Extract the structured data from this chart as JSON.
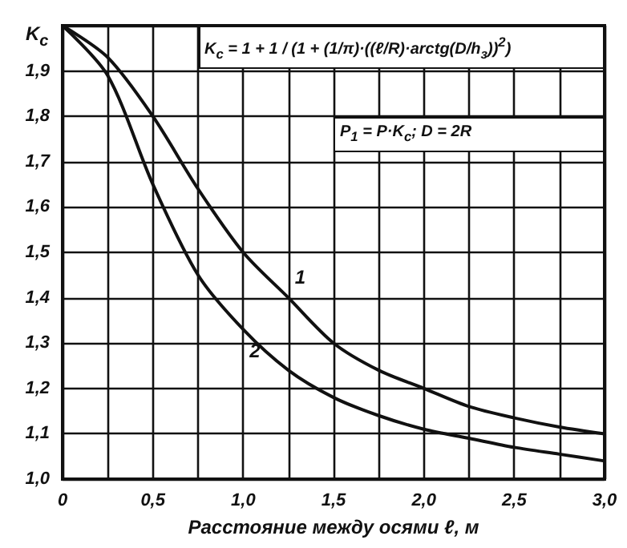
{
  "chart_data": {
    "type": "line",
    "xlabel": "Расстояние между осями ℓ, м",
    "ylabel": "K$_{c}$",
    "x": [
      0,
      0.25,
      0.5,
      0.75,
      1.0,
      1.25,
      1.5,
      1.75,
      2.0,
      2.25,
      2.5,
      2.75,
      3.0
    ],
    "series": [
      {
        "color": "#111111",
        "values": [
          2.0,
          1.93,
          1.8,
          1.64,
          1.5,
          1.4,
          1.3,
          1.24,
          1.2,
          1.16,
          1.135,
          1.115,
          1.1
        ]
      },
      {
        "color": "#111111",
        "values": [
          2.0,
          1.89,
          1.65,
          1.45,
          1.33,
          1.24,
          1.18,
          1.14,
          1.11,
          1.09,
          1.07,
          1.055,
          1.04
        ]
      }
    ],
    "xlim": [
      0,
      3.0
    ],
    "ylim": [
      1.0,
      2.0
    ],
    "xticks": [
      0,
      {
        "value": 0.25,
        "label": null
      },
      {
        "value": 0.5,
        "label": "0,5"
      },
      {
        "value": 0.75,
        "label": null
      },
      {
        "value": 1.0,
        "label": "1,0"
      },
      {
        "value": 1.25,
        "label": null
      },
      {
        "value": 1.5,
        "label": "1,5"
      },
      {
        "value": 1.75,
        "label": null
      },
      {
        "value": 2.0,
        "label": "2,0"
      },
      {
        "value": 2.25,
        "label": null
      },
      {
        "value": 2.5,
        "label": "2,5"
      },
      {
        "value": 2.75,
        "label": null
      },
      {
        "value": 3.0,
        "label": "3,0"
      }
    ],
    "yticks": [
      {
        "value": 1.0,
        "label": "1,0"
      },
      {
        "value": 1.1,
        "label": "1,1"
      },
      {
        "value": 1.2,
        "label": "1,2"
      },
      {
        "value": 1.3,
        "label": "1,3"
      },
      {
        "value": 1.4,
        "label": "1,4"
      },
      {
        "value": 1.5,
        "label": "1,5"
      },
      {
        "value": 1.6,
        "label": "1,6"
      },
      {
        "value": 1.7,
        "label": "1,7"
      },
      {
        "value": 1.8,
        "label": "1,8"
      },
      {
        "value": 1.9,
        "label": "1,9"
      },
      {
        "value": 2.0,
        "label": null
      }
    ],
    "grid": true,
    "marker": "none",
    "line_style": "solid",
    "annotations": [
      "K$_{c}$ = 1 + 1 / (1 + (1/π)·((ℓ/R)·arctg(D/h$_{з}$))$^{2}$)",
      "P$_{1}$ = P·K$_{c}$; D = 2R",
      {
        "text": "1",
        "x": 1.25,
        "y": 1.4
      },
      {
        "text": "2",
        "x": 1.0,
        "y": 1.33
      }
    ]
  }
}
